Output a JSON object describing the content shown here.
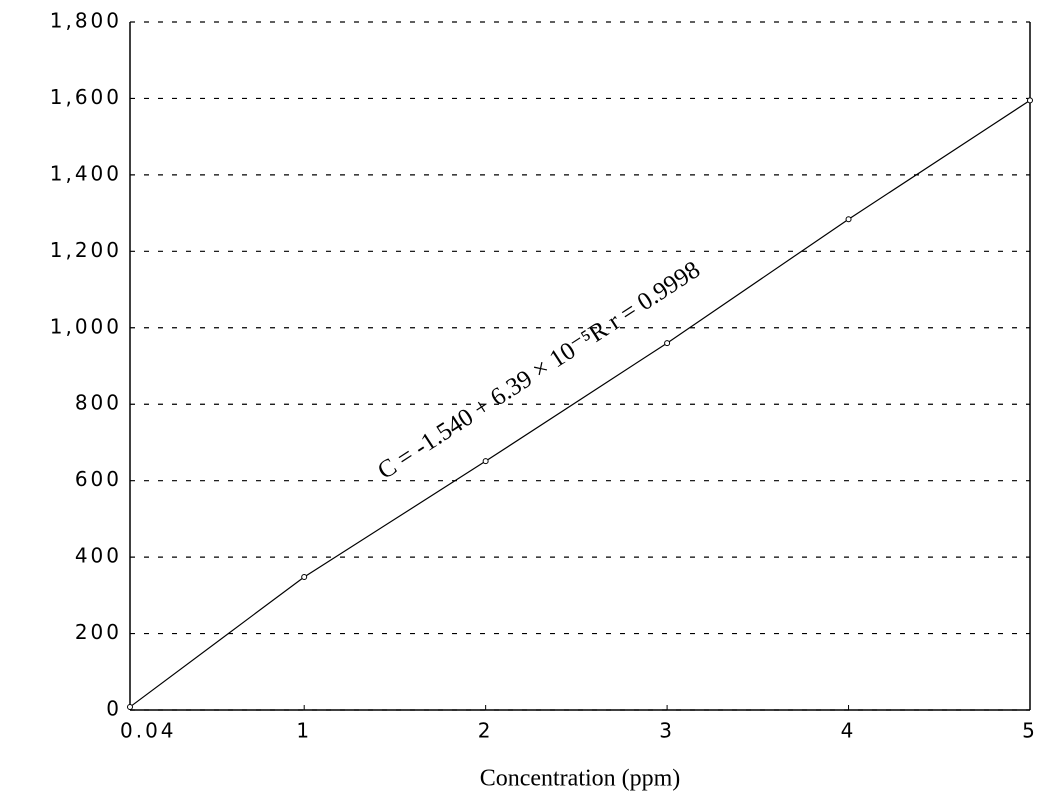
{
  "chart_data": {
    "type": "line",
    "x_label": "Concentration (ppm)",
    "annotation": "C = -1.540 + 6.39 × 10⁻⁵R  r = 0.9998",
    "x": [
      0.04,
      1,
      2,
      3,
      4,
      5
    ],
    "series": [
      {
        "color": "#000000",
        "values": [
          8,
          348,
          651,
          960,
          1284,
          1595
        ]
      }
    ],
    "xlim": [
      0.04,
      5
    ],
    "xticks": [
      {
        "value": 0.04,
        "label": "0.04"
      },
      1,
      2,
      3,
      4,
      5
    ],
    "ylim": [
      0,
      1800
    ],
    "yticks": [
      0,
      200,
      400,
      600,
      800,
      {
        "value": 1000,
        "label": "1,000"
      },
      {
        "value": 1200,
        "label": "1,200"
      },
      {
        "value": 1400,
        "label": "1,400"
      },
      {
        "value": 1600,
        "label": "1,600"
      },
      {
        "value": 1800,
        "label": "1,800"
      }
    ],
    "grid": true
  }
}
